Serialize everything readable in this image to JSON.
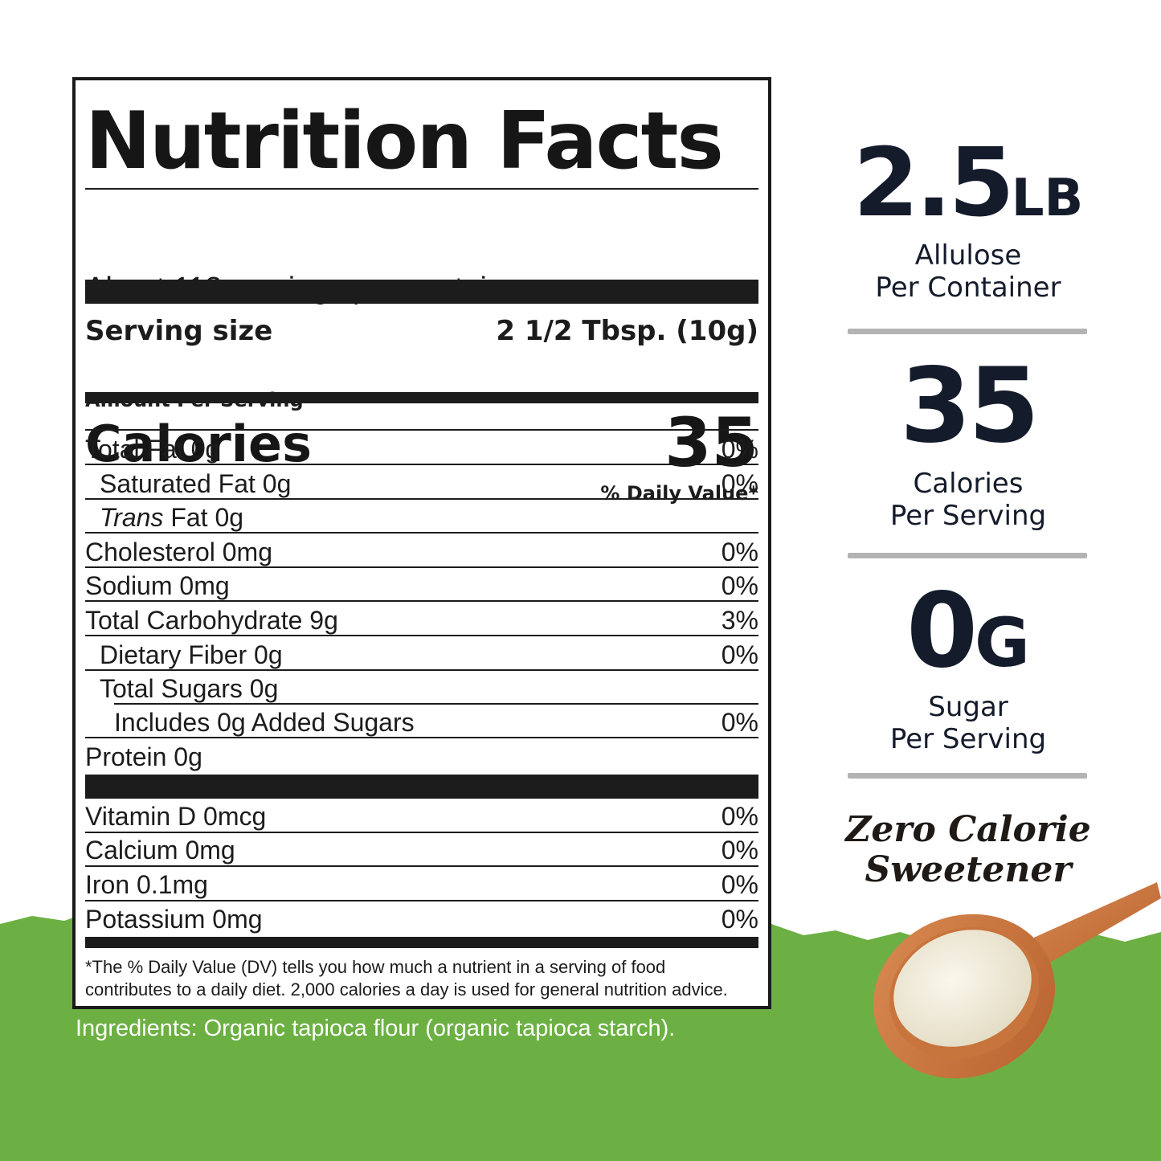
{
  "label": {
    "title": "Nutrition Facts",
    "servings_per_container": "About 113 servings per container",
    "serving_size_label": "Serving size",
    "serving_size_value": "2 1/2 Tbsp. (10g)",
    "amount_per_serving": "Amount Per Serving",
    "calories_label": "Calories",
    "calories_value": "35",
    "daily_value_header": "% Daily Value*",
    "nutrients": [
      {
        "name": "Total Fat  0g",
        "dv": "0%"
      },
      {
        "name": "Saturated Fat  0g",
        "dv": "0%"
      },
      {
        "name_italic": "Trans",
        "name": " Fat  0g",
        "dv": ""
      },
      {
        "name": "Cholesterol  0mg",
        "dv": "0%"
      },
      {
        "name": "Sodium   0mg",
        "dv": "0%"
      },
      {
        "name": "Total Carbohydrate  9g",
        "dv": "3%"
      },
      {
        "name": "Dietary Fiber  0g",
        "dv": "0%"
      },
      {
        "name": "Total Sugars  0g",
        "dv": ""
      },
      {
        "name": "Includes 0g Added Sugars",
        "dv": "0%"
      },
      {
        "name": "Protein 0g",
        "dv": ""
      }
    ],
    "vitamins": [
      {
        "name": "Vitamin D  0mcg",
        "dv": "0%"
      },
      {
        "name": "Calcium  0mg",
        "dv": "0%"
      },
      {
        "name": "Iron  0.1mg",
        "dv": "0%"
      },
      {
        "name": "Potassium 0mg",
        "dv": "0%"
      }
    ],
    "footnote_line1": "*The % Daily Value (DV) tells you how much a nutrient in a serving of food",
    "footnote_line2": "contributes to a daily diet. 2,000 calories a day is used for general nutrition advice."
  },
  "ingredients": "Ingredients: Organic tapioca flour (organic tapioca starch).",
  "stats": [
    {
      "value": "2.5",
      "unit": "LB",
      "line1": "Allulose",
      "line2": "Per Container"
    },
    {
      "value": "35",
      "unit": "",
      "line1": "Calories",
      "line2": "Per Serving"
    },
    {
      "value": "0",
      "unit": "G",
      "line1": "Sugar",
      "line2": "Per Serving"
    }
  ],
  "tagline_line1": "Zero Calorie",
  "tagline_line2": "Sweetener",
  "colors": {
    "green": "#6cb043",
    "navy": "#141b2b",
    "rule": "#1c1c1c"
  }
}
